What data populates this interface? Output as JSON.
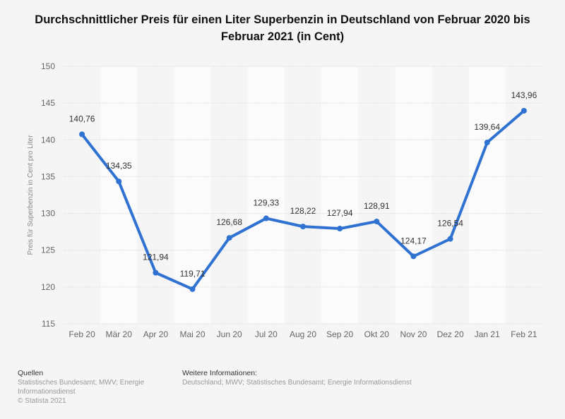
{
  "chart_data": {
    "type": "line",
    "title": "Durchschnittlicher Preis für einen Liter Superbenzin in Deutschland von Februar 2020 bis Februar 2021 (in Cent)",
    "ylabel": "Preis für Superbenzin in Cent pro Liter",
    "xlabel": "",
    "categories": [
      "Feb 20",
      "Mär 20",
      "Apr 20",
      "Mai 20",
      "Jun 20",
      "Jul 20",
      "Aug 20",
      "Sep 20",
      "Okt 20",
      "Nov 20",
      "Dez 20",
      "Jan 21",
      "Feb 21"
    ],
    "values": [
      140.76,
      134.35,
      121.94,
      119.71,
      126.68,
      129.33,
      128.22,
      127.94,
      128.91,
      124.17,
      126.54,
      139.64,
      143.96
    ],
    "data_labels": [
      "140,76",
      "134,35",
      "121,94",
      "119,71",
      "126,68",
      "129,33",
      "128,22",
      "127,94",
      "128,91",
      "124,17",
      "126,54",
      "139,64",
      "143,96"
    ],
    "ylim": [
      115,
      150
    ],
    "yticks": [
      115,
      120,
      125,
      130,
      135,
      140,
      145,
      150
    ],
    "grid": true,
    "line_color": "#2f72d1"
  },
  "footer": {
    "sources_heading": "Quellen",
    "sources_lines": [
      "Statistisches Bundesamt; MWV; Energie",
      "Informationsdienst",
      "© Statista 2021"
    ],
    "info_heading": "Weitere Informationen:",
    "info_text": "Deutschland; MWV; Statistisches Bundesamt; Energie Informationsdienst"
  }
}
